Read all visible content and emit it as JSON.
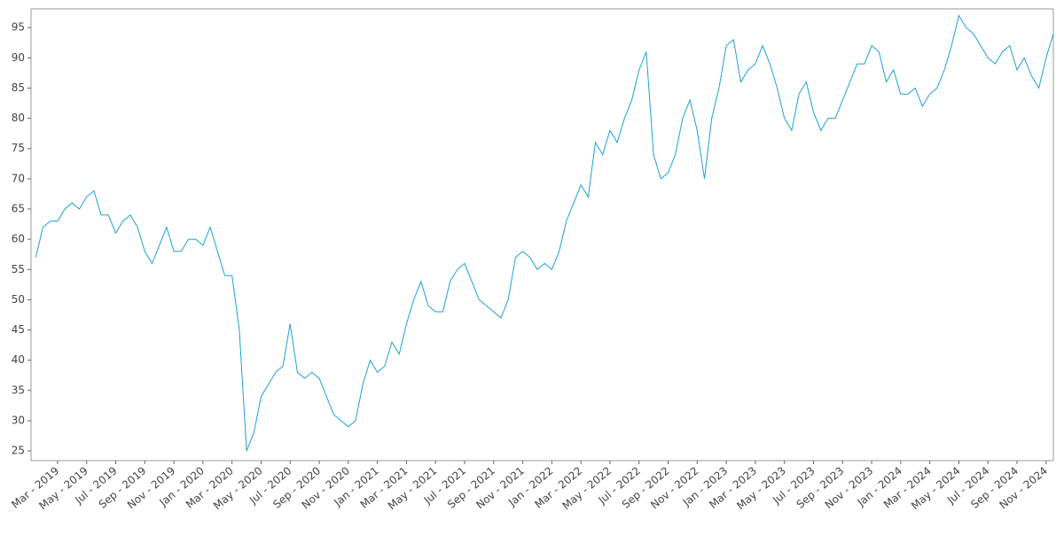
{
  "chart_data": {
    "type": "line",
    "categories": [
      null,
      null,
      null,
      "Mar - 2019",
      null,
      null,
      null,
      "May - 2019",
      null,
      null,
      null,
      "Jul - 2019",
      null,
      null,
      null,
      "Sep - 2019",
      null,
      null,
      null,
      "Nov - 2019",
      null,
      null,
      null,
      "Jan - 2020",
      null,
      null,
      null,
      "Mar - 2020",
      null,
      null,
      null,
      "May - 2020",
      null,
      null,
      null,
      "Jul - 2020",
      null,
      null,
      null,
      "Sep - 2020",
      null,
      null,
      null,
      "Nov - 2020",
      null,
      null,
      null,
      "Jan - 2021",
      null,
      null,
      null,
      "Mar - 2021",
      null,
      null,
      null,
      "May - 2021",
      null,
      null,
      null,
      "Jul - 2021",
      null,
      null,
      null,
      "Sep - 2021",
      null,
      null,
      null,
      "Nov - 2021",
      null,
      null,
      null,
      "Jan - 2022",
      null,
      null,
      null,
      "Mar - 2022",
      null,
      null,
      null,
      "May - 2022",
      null,
      null,
      null,
      "Jul - 2022",
      null,
      null,
      null,
      "Sep - 2022",
      null,
      null,
      null,
      "Nov - 2022",
      null,
      null,
      null,
      "Jan - 2023",
      null,
      null,
      null,
      "Mar - 2023",
      null,
      null,
      null,
      "May - 2023",
      null,
      null,
      null,
      "Jul - 2023",
      null,
      null,
      null,
      "Sep - 2023",
      null,
      null,
      null,
      "Nov - 2023",
      null,
      null,
      null,
      "Jan - 2024",
      null,
      null,
      null,
      "Mar - 2024",
      null,
      null,
      null,
      "May - 2024",
      null,
      null,
      null,
      "Jul - 2024",
      null,
      null,
      null,
      "Sep - 2024",
      null,
      null,
      null,
      "Nov - 2024",
      null
    ],
    "series": [
      {
        "color": "#1ea1d6",
        "values": [
          57,
          62,
          63,
          63,
          65,
          66,
          65,
          67,
          68,
          64,
          64,
          61,
          63,
          64,
          62,
          58,
          56,
          59,
          62,
          58,
          58,
          60,
          60,
          59,
          62,
          58,
          54,
          54,
          45,
          25,
          28,
          34,
          36,
          38,
          39,
          46,
          38,
          37,
          38,
          37,
          34,
          31,
          30,
          29,
          30,
          36,
          40,
          38,
          39,
          43,
          41,
          46,
          50,
          53,
          49,
          48,
          48,
          53,
          55,
          56,
          53,
          50,
          49,
          48,
          47,
          50,
          57,
          58,
          57,
          55,
          56,
          55,
          58,
          63,
          66,
          69,
          67,
          76,
          74,
          78,
          76,
          80,
          83,
          88,
          91,
          74,
          70,
          71,
          74,
          80,
          83,
          78,
          70,
          80,
          85,
          92,
          93,
          86,
          88,
          89,
          92,
          89,
          85,
          80,
          78,
          84,
          86,
          81,
          78,
          80,
          80,
          83,
          86,
          89,
          89,
          92,
          91,
          86,
          88,
          84,
          84,
          85,
          82,
          84,
          85,
          88,
          92,
          97,
          95,
          94,
          92,
          90,
          89,
          91,
          92,
          88,
          90,
          87,
          85,
          90,
          94
        ]
      }
    ],
    "xlim": [
      -0.65,
      140
    ],
    "ylim": [
      23.4,
      98.1
    ],
    "yticks": [
      25,
      30,
      35,
      40,
      45,
      50,
      55,
      60,
      65,
      70,
      75,
      80,
      85,
      90,
      95
    ]
  }
}
